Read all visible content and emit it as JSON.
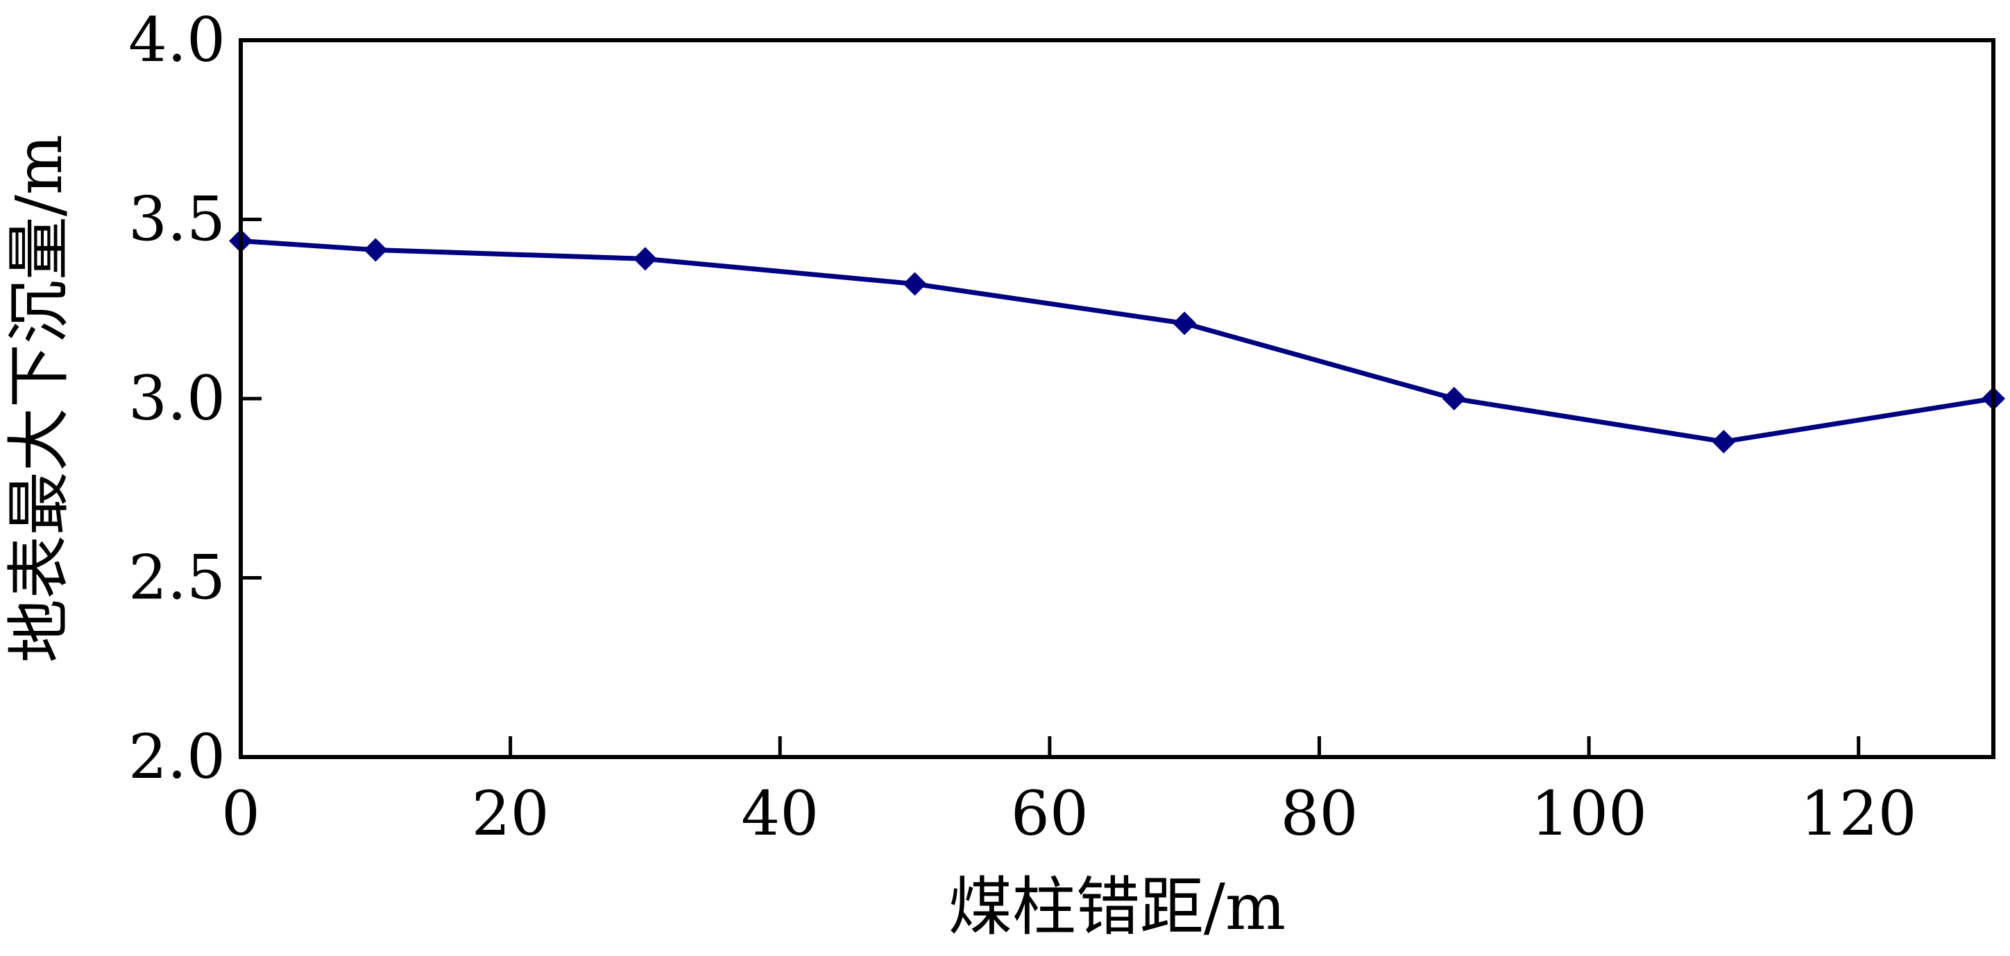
{
  "chart_data": {
    "type": "line",
    "title": "",
    "xlabel": "煤柱错距/m",
    "ylabel": "地表最大下沉量/m",
    "xlim": [
      0,
      130
    ],
    "ylim": [
      2.0,
      4.0
    ],
    "xticks": [
      0,
      20,
      40,
      60,
      80,
      100,
      120
    ],
    "yticks": [
      2.0,
      2.5,
      3.0,
      3.5,
      4.0
    ],
    "xtick_labels": [
      "0",
      "20",
      "40",
      "60",
      "80",
      "100",
      "120"
    ],
    "ytick_labels": [
      "2.0",
      "2.5",
      "3.0",
      "3.5",
      "4.0"
    ],
    "grid": false,
    "line_color": "#000080",
    "series": [
      {
        "x": [
          0,
          10,
          30,
          50,
          70,
          90,
          110,
          130
        ],
        "values": [
          3.44,
          3.415,
          3.39,
          3.32,
          3.21,
          3.0,
          2.88,
          3.0
        ]
      }
    ]
  }
}
